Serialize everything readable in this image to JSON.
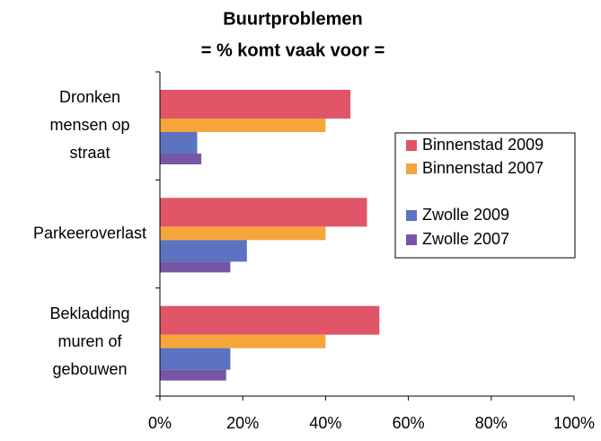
{
  "chart_data": {
    "type": "hbar",
    "title": "Buurtproblemen",
    "subtitle": "= % komt vaak voor =",
    "categories": [
      "Dronken mensen op straat",
      "Parkeeroverlast",
      "Bekladding muren of gebouwen"
    ],
    "series": [
      {
        "name": "Binnenstad 2009",
        "color": "#e05567",
        "values": [
          46,
          50,
          53
        ]
      },
      {
        "name": "Binnenstad 2007",
        "color": "#f6a53b",
        "values": [
          40,
          40,
          40
        ]
      },
      {
        "name": "Zwolle 2009",
        "color": "#5b73c0",
        "values": [
          9,
          21,
          17
        ]
      },
      {
        "name": "Zwolle 2007",
        "color": "#7656a4",
        "values": [
          10,
          17,
          16
        ]
      }
    ],
    "xlim": [
      0,
      100
    ],
    "xticks": [
      {
        "value": 0,
        "label": "0%"
      },
      {
        "value": 20,
        "label": "20%"
      },
      {
        "value": 40,
        "label": "40%"
      },
      {
        "value": 60,
        "label": "60%"
      },
      {
        "value": 80,
        "label": "80%"
      },
      {
        "value": 100,
        "label": "100%"
      }
    ],
    "legend": "right"
  }
}
